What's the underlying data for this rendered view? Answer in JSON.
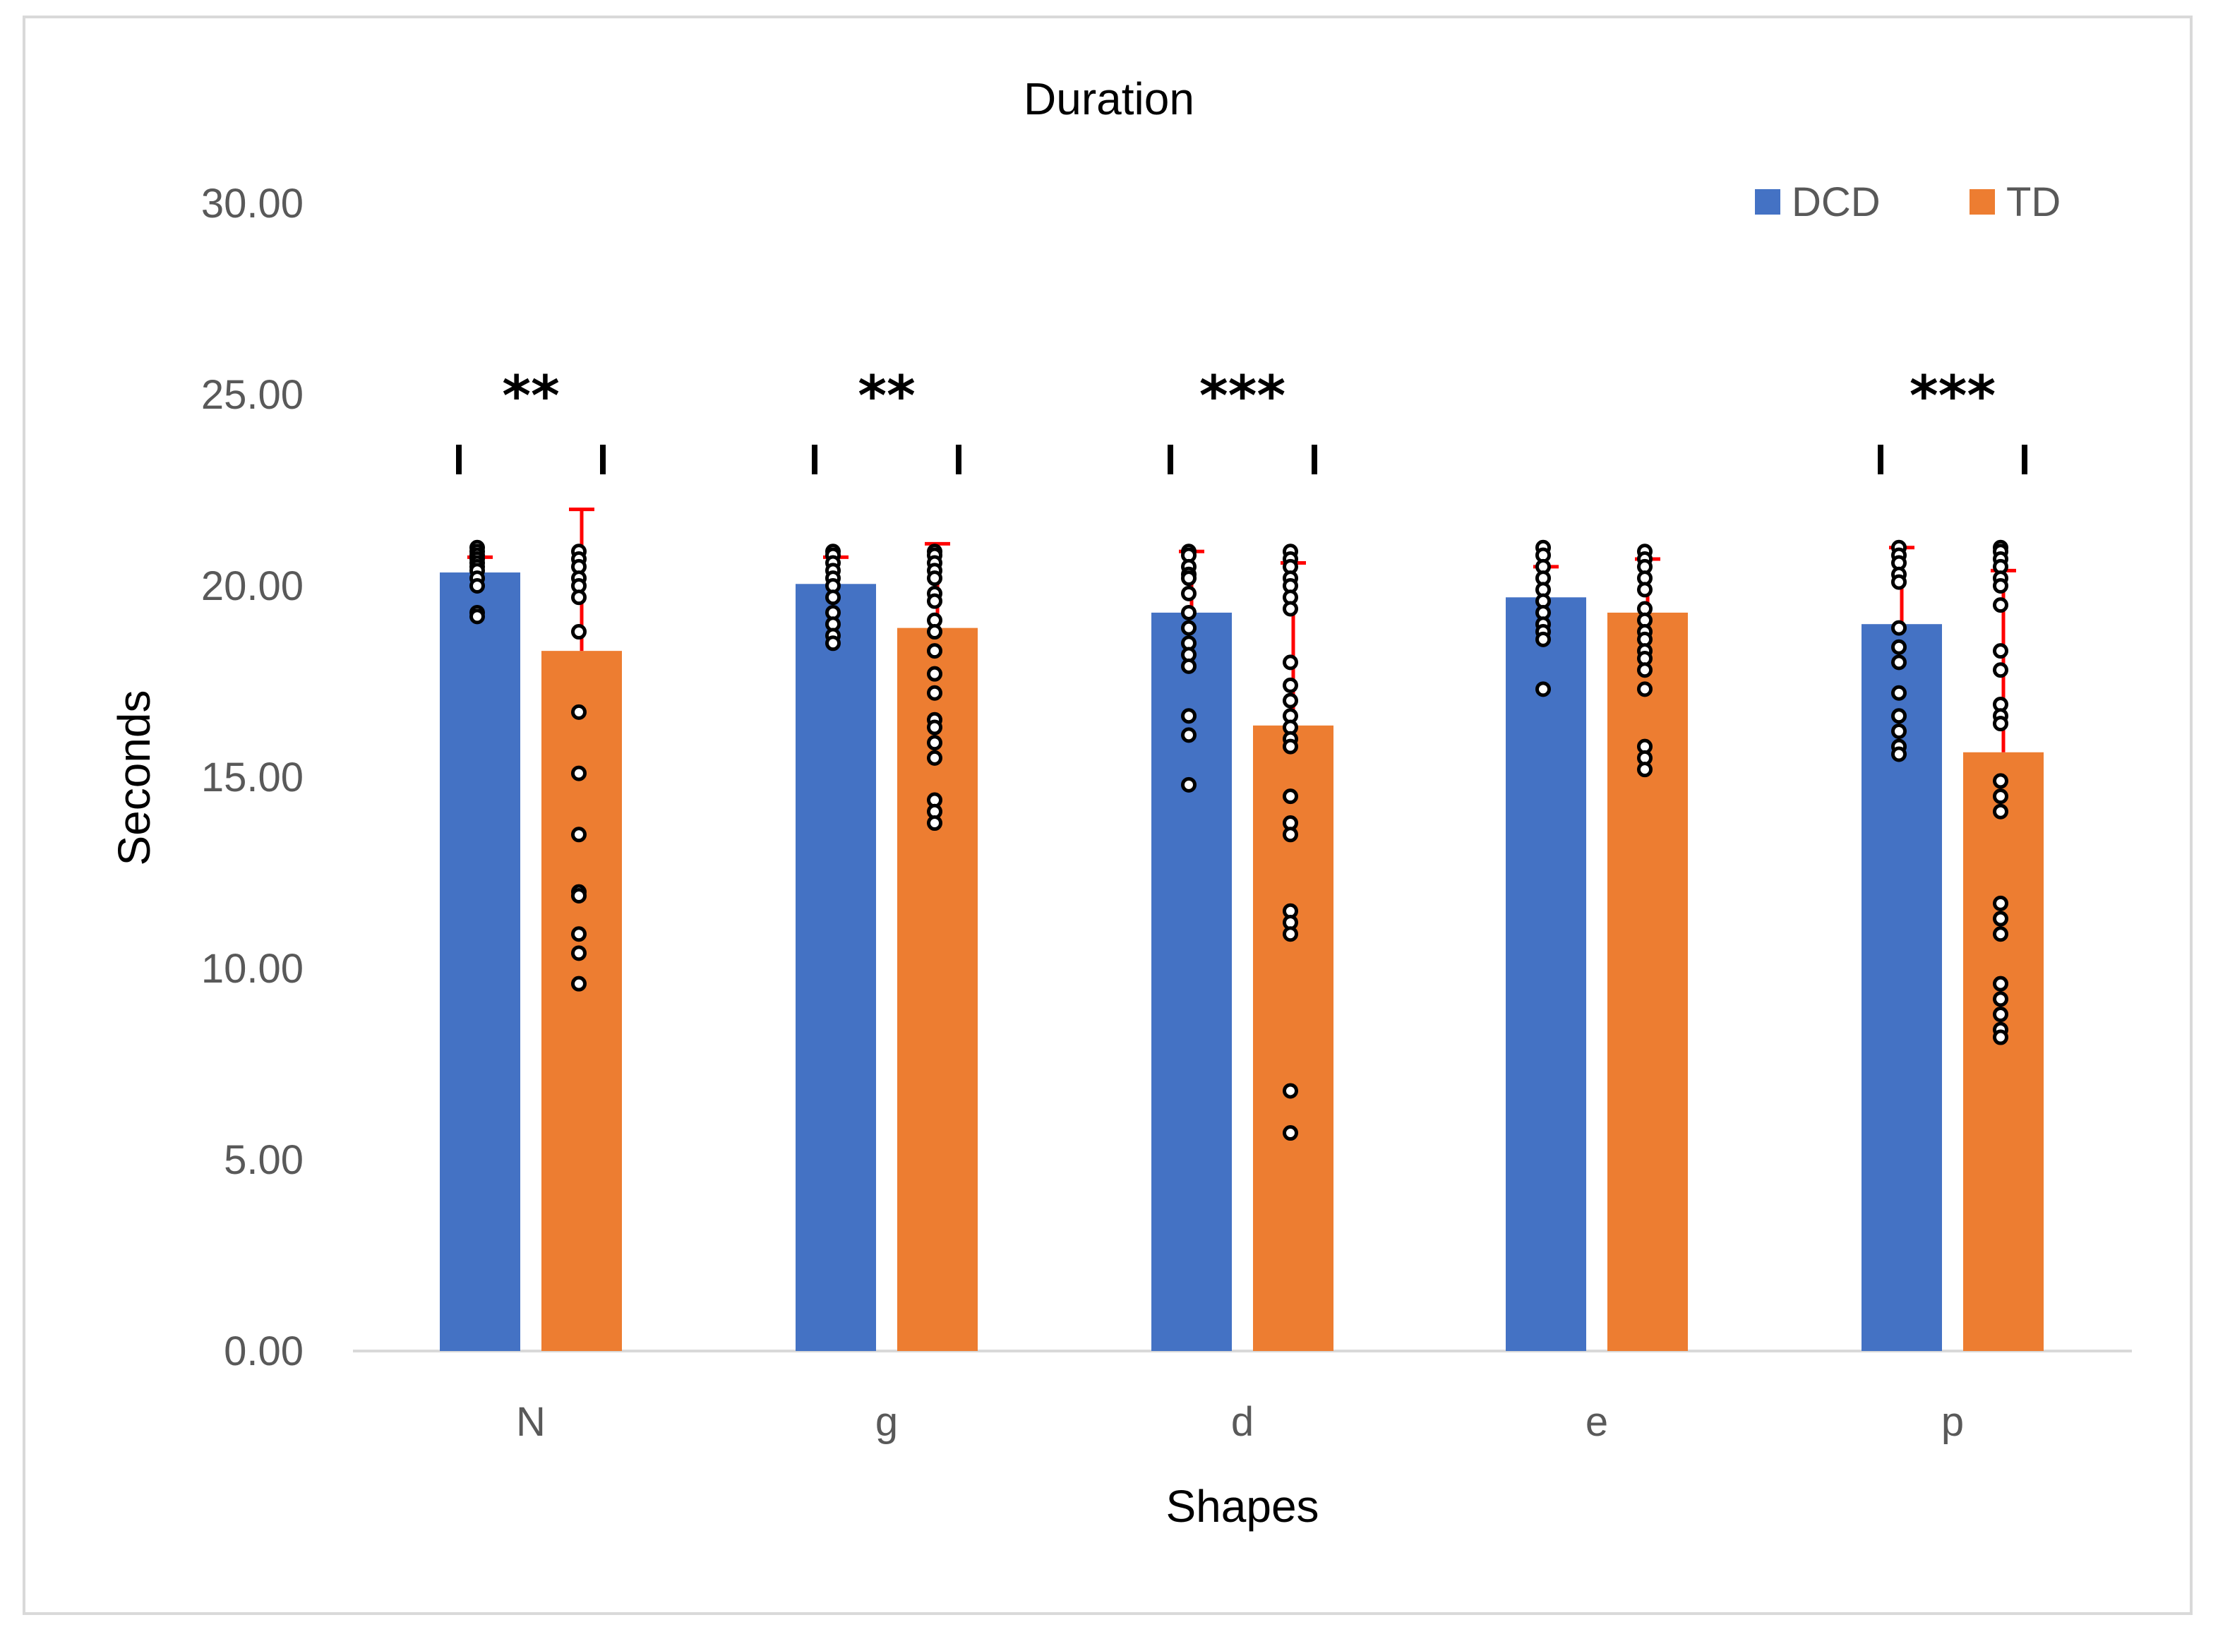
{
  "chart_data": {
    "type": "bar",
    "title": "Duration",
    "xlabel": "Shapes",
    "ylabel": "Seconds",
    "ylim": [
      0,
      30
    ],
    "yticks": [
      "0.00",
      "5.00",
      "10.00",
      "15.00",
      "20.00",
      "25.00",
      "30.00"
    ],
    "categories": [
      "N",
      "g",
      "d",
      "e",
      "p"
    ],
    "legend_position": "top-right",
    "grid": false,
    "series": [
      {
        "name": "DCD",
        "color": "#4472C4",
        "values": [
          20.35,
          20.05,
          19.3,
          19.7,
          19.0
        ],
        "error_plus": [
          0.4,
          0.7,
          1.6,
          0.8,
          2.0
        ],
        "points": [
          [
            21.0,
            20.9,
            20.8,
            20.7,
            20.6,
            20.5,
            20.4,
            20.2,
            20.0,
            19.3,
            19.2
          ],
          [
            20.9,
            20.8,
            20.6,
            20.4,
            20.2,
            20.0,
            19.7,
            19.3,
            19.0,
            18.7,
            18.5
          ],
          [
            20.9,
            20.8,
            20.5,
            20.3,
            20.2,
            19.8,
            19.3,
            18.9,
            18.5,
            18.2,
            17.9,
            16.6,
            16.1,
            14.8
          ],
          [
            21.0,
            20.8,
            20.5,
            20.2,
            19.9,
            19.6,
            19.3,
            19.0,
            18.8,
            18.6,
            17.3
          ],
          [
            21.0,
            20.8,
            20.6,
            20.3,
            20.1,
            18.9,
            18.4,
            18.0,
            17.2,
            16.6,
            16.2,
            15.8,
            15.6
          ]
        ]
      },
      {
        "name": "TD",
        "color": "#ED7D31",
        "values": [
          18.3,
          18.9,
          16.35,
          19.3,
          15.65
        ],
        "error_plus": [
          3.7,
          2.2,
          4.25,
          1.4,
          4.75
        ],
        "points": [
          [
            20.9,
            20.7,
            20.5,
            20.2,
            20.0,
            19.7,
            18.8,
            16.7,
            15.1,
            13.5,
            12.0,
            11.9,
            10.9,
            10.4,
            9.6
          ],
          [
            20.9,
            20.8,
            20.6,
            20.4,
            20.2,
            19.8,
            19.6,
            19.1,
            18.8,
            18.3,
            17.7,
            17.2,
            16.5,
            16.3,
            15.9,
            15.5,
            14.4,
            14.1,
            13.8
          ],
          [
            20.9,
            20.7,
            20.5,
            20.2,
            20.0,
            19.7,
            19.4,
            18.0,
            17.4,
            17.0,
            16.6,
            16.3,
            16.0,
            15.8,
            14.5,
            13.8,
            13.5,
            11.5,
            11.2,
            10.9,
            6.8,
            5.7
          ],
          [
            20.9,
            20.7,
            20.5,
            20.2,
            19.9,
            19.4,
            19.1,
            18.8,
            18.6,
            18.3,
            18.1,
            17.8,
            17.3,
            15.8,
            15.5,
            15.2
          ],
          [
            21.0,
            20.9,
            20.7,
            20.5,
            20.2,
            20.0,
            19.5,
            18.3,
            17.8,
            16.9,
            16.6,
            16.4,
            14.9,
            14.5,
            14.1,
            11.7,
            11.3,
            10.9,
            9.6,
            9.2,
            8.8,
            8.4,
            8.2
          ]
        ]
      }
    ],
    "significance": [
      "**",
      "**",
      "***",
      "",
      "***"
    ]
  }
}
